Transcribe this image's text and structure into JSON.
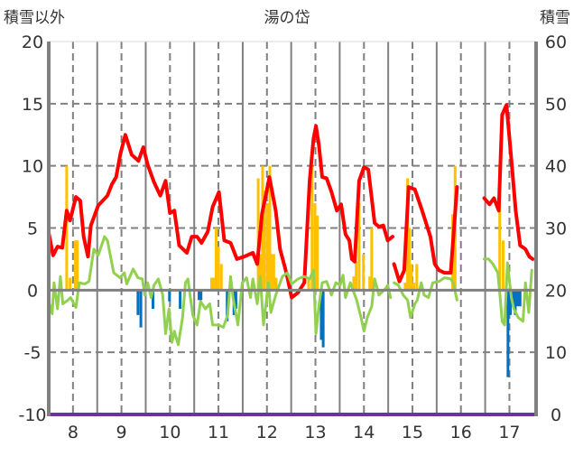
{
  "chart_data": {
    "type": "line",
    "title": "湯の岱",
    "ylabel_left": "積雪以外",
    "ylabel_right": "積雪",
    "xlim": [
      7.5,
      17.55
    ],
    "ylim_left": [
      -10,
      20
    ],
    "ylim_right": [
      0,
      60
    ],
    "x_ticks": [
      "8",
      "9",
      "10",
      "11",
      "12",
      "13",
      "14",
      "15",
      "16",
      "17"
    ],
    "y_ticks_left": [
      "20",
      "15",
      "10",
      "5",
      "0",
      "-5",
      "-10"
    ],
    "y_ticks_right": [
      "60",
      "50",
      "40",
      "30",
      "20",
      "10",
      "0"
    ],
    "grid": true,
    "colors": {
      "red": "#ff0000",
      "green": "#92d050",
      "orange": "#ffc000",
      "blue": "#0070c0",
      "purple": "#7030a0",
      "axis": "#808080"
    },
    "series": [
      {
        "name": "red-series",
        "axis": "left",
        "color": "#ff0000",
        "points": [
          [
            7.5,
            4.6
          ],
          [
            7.59,
            2.8
          ],
          [
            7.68,
            3.5
          ],
          [
            7.78,
            3.4
          ],
          [
            7.87,
            6.4
          ],
          [
            7.94,
            5.6
          ],
          [
            8.06,
            7.5
          ],
          [
            8.15,
            7.2
          ],
          [
            8.22,
            4.3
          ],
          [
            8.31,
            2.7
          ],
          [
            8.37,
            5.2
          ],
          [
            8.52,
            6.8
          ],
          [
            8.71,
            7.6
          ],
          [
            8.8,
            8.5
          ],
          [
            8.89,
            9.1
          ],
          [
            8.98,
            11.0
          ],
          [
            9.08,
            12.5
          ],
          [
            9.21,
            10.9
          ],
          [
            9.35,
            10.4
          ],
          [
            9.45,
            11.5
          ],
          [
            9.54,
            10.1
          ],
          [
            9.67,
            8.7
          ],
          [
            9.8,
            7.6
          ],
          [
            9.91,
            8.8
          ],
          [
            10.0,
            6.2
          ],
          [
            10.09,
            6.4
          ],
          [
            10.19,
            3.6
          ],
          [
            10.35,
            3.0
          ],
          [
            10.45,
            4.3
          ],
          [
            10.56,
            4.3
          ],
          [
            10.65,
            3.8
          ],
          [
            10.78,
            4.7
          ],
          [
            10.88,
            6.7
          ],
          [
            11.01,
            7.9
          ],
          [
            11.12,
            4.0
          ],
          [
            11.25,
            3.8
          ],
          [
            11.38,
            2.5
          ],
          [
            11.53,
            2.7
          ],
          [
            11.71,
            3.0
          ],
          [
            11.8,
            2.1
          ],
          [
            11.9,
            6.2
          ],
          [
            11.99,
            7.9
          ],
          [
            12.05,
            9.1
          ],
          [
            12.18,
            6.4
          ],
          [
            12.27,
            3.3
          ],
          [
            12.4,
            1.4
          ],
          [
            12.51,
            -0.6
          ],
          [
            12.64,
            -0.2
          ],
          [
            12.77,
            0.6
          ],
          [
            12.88,
            8.8
          ],
          [
            12.96,
            12.2
          ],
          [
            13.01,
            13.2
          ],
          [
            13.07,
            11.7
          ],
          [
            13.14,
            9.1
          ],
          [
            13.23,
            9.0
          ],
          [
            13.33,
            7.9
          ],
          [
            13.44,
            6.4
          ],
          [
            13.53,
            6.9
          ],
          [
            13.62,
            4.5
          ],
          [
            13.7,
            4.0
          ],
          [
            13.75,
            2.5
          ],
          [
            13.81,
            2.3
          ],
          [
            13.9,
            8.8
          ],
          [
            14.0,
            9.9
          ],
          [
            14.09,
            9.7
          ],
          [
            14.22,
            5.4
          ],
          [
            14.31,
            5.1
          ],
          [
            14.4,
            5.2
          ],
          [
            14.49,
            4.0
          ],
          [
            14.59,
            4.3
          ],
          null,
          [
            14.62,
            2.1
          ],
          [
            14.73,
            0.7
          ],
          [
            14.83,
            1.6
          ],
          [
            14.92,
            8.3
          ],
          [
            15.05,
            8.1
          ],
          [
            15.2,
            6.4
          ],
          [
            15.37,
            4.3
          ],
          [
            15.46,
            2.1
          ],
          [
            15.55,
            1.6
          ],
          [
            15.66,
            1.4
          ],
          [
            15.79,
            1.4
          ],
          [
            15.92,
            8.3
          ],
          null,
          [
            16.48,
            7.4
          ],
          [
            16.59,
            6.9
          ],
          [
            16.68,
            7.4
          ],
          [
            16.78,
            6.4
          ],
          [
            16.85,
            14.1
          ],
          [
            16.94,
            14.9
          ],
          [
            17.04,
            10.5
          ],
          [
            17.13,
            6.4
          ],
          [
            17.22,
            3.6
          ],
          [
            17.33,
            3.3
          ],
          [
            17.41,
            2.7
          ],
          [
            17.48,
            2.5
          ]
        ]
      },
      {
        "name": "green-series",
        "axis": "left",
        "color": "#92d050",
        "points": [
          [
            7.5,
            -0.9
          ],
          [
            7.57,
            -1.9
          ],
          [
            7.61,
            0.6
          ],
          [
            7.68,
            -1.5
          ],
          [
            7.74,
            1.1
          ],
          [
            7.79,
            -1.1
          ],
          [
            7.9,
            -0.8
          ],
          [
            7.95,
            -0.6
          ],
          [
            8.06,
            -1.4
          ],
          [
            8.13,
            0.6
          ],
          [
            8.24,
            0.5
          ],
          [
            8.33,
            0.7
          ],
          [
            8.43,
            3.3
          ],
          [
            8.52,
            2.8
          ],
          [
            8.65,
            4.3
          ],
          [
            8.71,
            4.0
          ],
          [
            8.84,
            1.4
          ],
          [
            8.97,
            1.0
          ],
          [
            9.06,
            1.4
          ],
          [
            9.11,
            0.5
          ],
          [
            9.24,
            1.7
          ],
          [
            9.34,
            1.0
          ],
          [
            9.43,
            0.9
          ],
          [
            9.48,
            -0.4
          ],
          [
            9.54,
            0.6
          ],
          [
            9.61,
            -0.6
          ],
          [
            9.67,
            0.4
          ],
          [
            9.76,
            0.9
          ],
          [
            9.85,
            -0.4
          ],
          [
            9.91,
            -3.5
          ],
          [
            9.98,
            -1.5
          ],
          [
            10.04,
            -4.2
          ],
          [
            10.09,
            -3.3
          ],
          [
            10.17,
            -4.4
          ],
          [
            10.26,
            -2.2
          ],
          [
            10.32,
            0.6
          ],
          [
            10.37,
            0.9
          ],
          [
            10.47,
            -2.0
          ],
          [
            10.56,
            -2.8
          ],
          [
            10.63,
            -0.9
          ],
          [
            10.73,
            -1.5
          ],
          [
            10.82,
            -1.1
          ],
          [
            10.88,
            -2.8
          ],
          [
            11.01,
            -2.8
          ],
          [
            11.1,
            -3.0
          ],
          [
            11.19,
            -2.0
          ],
          [
            11.25,
            1.1
          ],
          [
            11.3,
            -0.6
          ],
          [
            11.4,
            -2.8
          ],
          [
            11.49,
            0.6
          ],
          [
            11.58,
            1.0
          ],
          [
            11.66,
            -0.6
          ],
          [
            11.71,
            0.9
          ],
          [
            11.8,
            -1.1
          ],
          [
            11.86,
            1.1
          ],
          [
            11.93,
            -2.8
          ],
          [
            12.03,
            0.6
          ],
          [
            12.08,
            -1.8
          ],
          [
            12.18,
            -0.4
          ],
          [
            12.32,
            1.1
          ],
          [
            12.42,
            1.4
          ],
          [
            12.51,
            0.5
          ],
          [
            12.64,
            0.9
          ],
          [
            12.77,
            1.1
          ],
          [
            12.88,
            0.9
          ],
          [
            12.96,
            1.6
          ],
          [
            13.01,
            -3.5
          ],
          [
            13.07,
            -1.3
          ],
          [
            13.14,
            0.6
          ],
          [
            13.23,
            0.7
          ],
          [
            13.33,
            -0.4
          ],
          [
            13.42,
            0.6
          ],
          [
            13.51,
            0.4
          ],
          [
            13.57,
            1.2
          ],
          [
            13.62,
            -0.6
          ],
          [
            13.72,
            0.6
          ],
          [
            13.85,
            -0.8
          ],
          [
            13.94,
            -2.2
          ],
          [
            14.0,
            -3.3
          ],
          [
            14.07,
            -2.2
          ],
          [
            14.16,
            -1.3
          ],
          [
            14.22,
            0.9
          ],
          [
            14.31,
            -0.4
          ],
          [
            14.44,
            0.1
          ],
          [
            14.49,
            0.4
          ],
          [
            14.55,
            -0.6
          ],
          null,
          [
            14.62,
            0.6
          ],
          [
            14.71,
            0.4
          ],
          [
            14.81,
            -0.4
          ],
          [
            14.9,
            -0.8
          ],
          [
            14.96,
            -2.2
          ],
          [
            15.05,
            -1.1
          ],
          [
            15.1,
            -0.8
          ],
          [
            15.18,
            0.6
          ],
          [
            15.24,
            -0.4
          ],
          [
            15.33,
            -0.6
          ],
          [
            15.42,
            0.6
          ],
          [
            15.55,
            0.7
          ],
          [
            15.66,
            1.0
          ],
          [
            15.79,
            0.9
          ],
          [
            15.84,
            0.6
          ],
          [
            15.92,
            -0.8
          ],
          null,
          [
            16.48,
            2.5
          ],
          [
            16.57,
            2.5
          ],
          [
            16.66,
            2.1
          ],
          [
            16.76,
            1.4
          ],
          [
            16.81,
            -0.6
          ],
          [
            16.85,
            -2.5
          ],
          [
            16.9,
            -2.8
          ],
          [
            16.96,
            2.2
          ],
          [
            17.04,
            -0.6
          ],
          [
            17.09,
            -1.5
          ],
          [
            17.18,
            -2.2
          ],
          [
            17.28,
            -2.5
          ],
          [
            17.33,
            0.6
          ],
          [
            17.4,
            -1.8
          ],
          [
            17.46,
            1.6
          ]
        ]
      },
      {
        "name": "snow-depth",
        "axis": "right",
        "color": "#7030a0",
        "points": [
          [
            7.5,
            0
          ],
          [
            17.55,
            0
          ]
        ]
      }
    ],
    "bars": [
      [
        7.87,
        10
      ],
      [
        7.94,
        1.0
      ],
      [
        8.05,
        4.0
      ],
      [
        8.09,
        4.0
      ],
      [
        9.34,
        -2.0
      ],
      [
        9.4,
        -3.0
      ],
      [
        9.65,
        -1.5
      ],
      [
        9.99,
        -0.9
      ],
      [
        10.21,
        -1.5
      ],
      [
        10.6,
        -0.8
      ],
      [
        10.64,
        -0.8
      ],
      [
        10.86,
        1.0
      ],
      [
        10.9,
        1.0
      ],
      [
        10.95,
        5.0
      ],
      [
        11.0,
        3.5
      ],
      [
        11.06,
        2.1
      ],
      [
        11.18,
        -2.5
      ],
      [
        11.32,
        -2.0
      ],
      [
        11.36,
        -1.5
      ],
      [
        11.82,
        9.0
      ],
      [
        11.86,
        2.9
      ],
      [
        11.91,
        10
      ],
      [
        11.95,
        8.0
      ],
      [
        12.01,
        7.0
      ],
      [
        12.06,
        10
      ],
      [
        12.1,
        2.9
      ],
      [
        12.14,
        2.9
      ],
      [
        12.19,
        1.0
      ],
      [
        12.86,
        1.0
      ],
      [
        12.93,
        10
      ],
      [
        12.99,
        7.0
      ],
      [
        13.04,
        6.0
      ],
      [
        13.12,
        -4.0
      ],
      [
        13.16,
        -4.6
      ],
      [
        13.79,
        1.1
      ],
      [
        13.84,
        2.3
      ],
      [
        13.9,
        7.0
      ],
      [
        13.99,
        2.9
      ],
      [
        14.12,
        1.1
      ],
      [
        14.16,
        5.0
      ],
      [
        14.85,
        0.6
      ],
      [
        14.9,
        9.0
      ],
      [
        14.94,
        5.0
      ],
      [
        14.98,
        2.1
      ],
      [
        15.03,
        0.6
      ],
      [
        15.09,
        2.1
      ],
      [
        15.83,
        6.1
      ],
      [
        15.88,
        10
      ],
      [
        16.8,
        10
      ],
      [
        16.87,
        4.0
      ],
      [
        16.97,
        -7.0
      ],
      [
        17.02,
        -2.0
      ],
      [
        17.07,
        -1.3
      ],
      [
        17.12,
        -2.0
      ],
      [
        17.17,
        -1.3
      ],
      [
        17.22,
        -1.3
      ]
    ]
  }
}
